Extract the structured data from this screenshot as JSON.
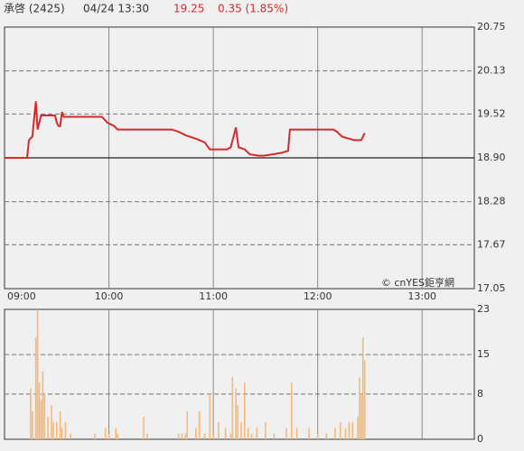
{
  "header": {
    "name": "承啓 (2425)",
    "time": "04/24 13:30",
    "price": "19.25",
    "change": "0.35 (1.85%)"
  },
  "chart_data": [
    {
      "type": "line",
      "color": "#d42a2a",
      "annotation": "© cnYES鉅亨網",
      "xlim": [
        0,
        270
      ],
      "xticks": [
        {
          "value": 0,
          "label": "09:00"
        },
        {
          "value": 60,
          "label": "10:00"
        },
        {
          "value": 120,
          "label": "11:00"
        },
        {
          "value": 180,
          "label": "12:00"
        },
        {
          "value": 240,
          "label": "13:00"
        }
      ],
      "ylim": [
        17.05,
        20.75
      ],
      "yticks": [
        20.75,
        20.13,
        19.52,
        {
          "value": 18.9,
          "label": "18.90"
        },
        18.28,
        17.67,
        17.05
      ],
      "baseline": 18.9,
      "x": [
        0,
        13,
        14,
        16,
        18,
        19,
        21,
        25,
        29,
        30,
        31,
        32,
        33,
        34,
        56,
        59,
        63,
        65,
        96,
        100,
        104,
        110,
        115,
        118,
        128,
        130,
        133,
        134.5,
        138,
        141,
        146,
        149,
        154,
        159,
        163,
        164,
        189,
        191,
        194,
        201,
        205,
        207
      ],
      "values": [
        18.9,
        18.9,
        19.15,
        19.2,
        19.7,
        19.3,
        19.5,
        19.5,
        19.5,
        19.4,
        19.35,
        19.35,
        19.55,
        19.48,
        19.48,
        19.4,
        19.35,
        19.3,
        19.3,
        19.27,
        19.22,
        19.17,
        19.12,
        19.02,
        19.02,
        19.05,
        19.33,
        19.05,
        19.02,
        18.95,
        18.93,
        18.93,
        18.95,
        18.97,
        19.0,
        19.3,
        19.3,
        19.27,
        19.2,
        19.15,
        19.15,
        19.25
      ]
    },
    {
      "type": "bar",
      "color": "#f5b87a",
      "xlim": [
        0,
        270
      ],
      "ylim": [
        0,
        23
      ],
      "yticks": [
        23,
        15,
        8,
        0
      ],
      "x": [
        15,
        16,
        18,
        19,
        20,
        21,
        22,
        23,
        25,
        27,
        28,
        30,
        32,
        33,
        35,
        38,
        52,
        58,
        60,
        64,
        65,
        80,
        82,
        100,
        102,
        104,
        105,
        110,
        112,
        115,
        118,
        120,
        123,
        127,
        130,
        131,
        133,
        134,
        136,
        138,
        140,
        142,
        145,
        150,
        155,
        162,
        165,
        168,
        175,
        180,
        185,
        190,
        193,
        196,
        198,
        200,
        203,
        204,
        205,
        206,
        207
      ],
      "values": [
        9,
        5,
        18,
        23,
        10,
        7,
        12,
        8,
        4,
        6,
        3,
        3,
        5,
        2,
        3,
        1,
        1,
        2,
        1,
        2,
        1,
        4,
        1,
        1,
        1,
        1,
        5,
        2,
        5,
        1,
        8,
        1,
        3,
        2,
        1,
        11,
        9,
        6,
        3,
        10,
        2,
        1,
        2,
        3,
        1,
        2,
        10,
        2,
        2,
        1,
        1,
        2,
        3,
        2,
        3,
        3,
        4,
        11,
        8,
        18,
        14
      ]
    }
  ]
}
